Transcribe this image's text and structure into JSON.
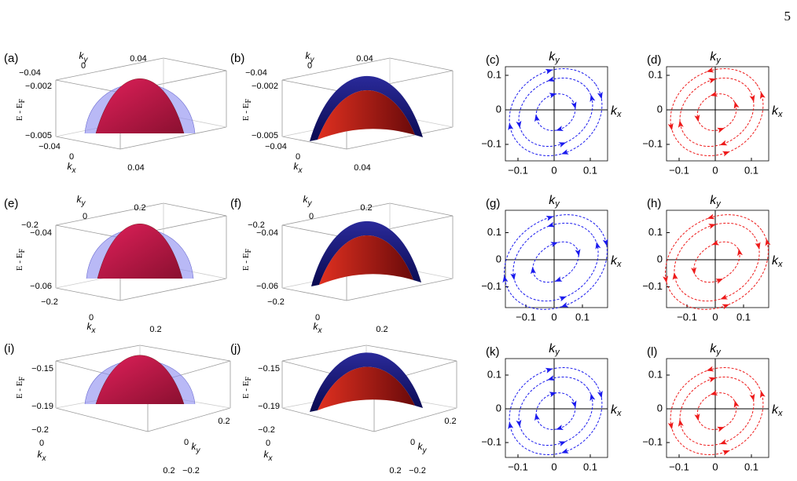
{
  "page_number": "5",
  "panels": [
    {
      "label": "(a)",
      "kind": "surface",
      "z_label": "E - E",
      "z_label_sub": "F",
      "z_ticks": [
        "−0.002",
        "−0.005"
      ],
      "x_label": "k",
      "x_label_sub": "x",
      "x_ticks": [
        "−0.04",
        "0",
        "0.04"
      ],
      "y_label": "k",
      "y_label_sub": "y",
      "y_ticks": [
        "−0.04",
        "0",
        "0.04"
      ]
    },
    {
      "label": "(b)",
      "kind": "surface",
      "z_label": "E - E",
      "z_label_sub": "F",
      "z_ticks": [
        "−0.002",
        "−0.005"
      ],
      "x_label": "k",
      "x_label_sub": "x",
      "x_ticks": [
        "−0.04",
        "0",
        "0.04"
      ],
      "y_label": "k",
      "y_label_sub": "y",
      "y_ticks": [
        "−0.04",
        "0",
        "0.04"
      ]
    },
    {
      "label": "(c)",
      "kind": "contour",
      "color": "#1a1aee",
      "x_label": "k",
      "x_label_sub": "x",
      "x_ticks": [
        "−0.1",
        "0",
        "0.1"
      ],
      "y_label": "k",
      "y_label_sub": "y",
      "y_ticks": [
        "0.1",
        "0",
        "−0.1"
      ]
    },
    {
      "label": "(d)",
      "kind": "contour",
      "color": "#ee1a1a",
      "x_label": "k",
      "x_label_sub": "x",
      "x_ticks": [
        "−0.1",
        "0",
        "0.1"
      ],
      "y_label": "k",
      "y_label_sub": "y",
      "y_ticks": [
        "0.1",
        "0",
        "−0.1"
      ]
    },
    {
      "label": "(e)",
      "kind": "surface",
      "z_label": "E - E",
      "z_label_sub": "F",
      "z_ticks": [
        "−0.04",
        "−0.06"
      ],
      "x_label": "k",
      "x_label_sub": "x",
      "x_ticks": [
        "−0.2",
        "0",
        "0.2"
      ],
      "y_label": "k",
      "y_label_sub": "y",
      "y_ticks": [
        "−0.2",
        "0",
        "0.2"
      ]
    },
    {
      "label": "(f)",
      "kind": "surface",
      "z_label": "E - E",
      "z_label_sub": "F",
      "z_ticks": [
        "−0.04",
        "−0.06"
      ],
      "x_label": "k",
      "x_label_sub": "x",
      "x_ticks": [
        "−0.2",
        "0",
        "0.2"
      ],
      "y_label": "k",
      "y_label_sub": "y",
      "y_ticks": [
        "−0.2",
        "0",
        "0.2"
      ]
    },
    {
      "label": "(g)",
      "kind": "contour",
      "color": "#1a1aee",
      "x_label": "k",
      "x_label_sub": "x",
      "x_ticks": [
        "−0.1",
        "0",
        "0.1"
      ],
      "y_label": "k",
      "y_label_sub": "y",
      "y_ticks": [
        "0.1",
        "0",
        "−0.1"
      ]
    },
    {
      "label": "(h)",
      "kind": "contour",
      "color": "#ee1a1a",
      "x_label": "k",
      "x_label_sub": "x",
      "x_ticks": [
        "−0.1",
        "0",
        "0.1"
      ],
      "y_label": "k",
      "y_label_sub": "y",
      "y_ticks": [
        "0.1",
        "0",
        "−0.1"
      ]
    },
    {
      "label": "(i)",
      "kind": "surface",
      "z_label": "E - E",
      "z_label_sub": "F",
      "z_ticks": [
        "−0.15",
        "−0.19"
      ],
      "x_label": "k",
      "x_label_sub": "x",
      "x_ticks": [
        "−0.2",
        "0",
        "0.2"
      ],
      "y_label": "k",
      "y_label_sub": "y",
      "y_ticks": [
        "0.2",
        "0",
        "−0.2"
      ]
    },
    {
      "label": "(j)",
      "kind": "surface",
      "z_label": "E - E",
      "z_label_sub": "F",
      "z_ticks": [
        "−0.15",
        "−0.19"
      ],
      "x_label": "k",
      "x_label_sub": "x",
      "x_ticks": [
        "−0.2",
        "0",
        "0.2"
      ],
      "y_label": "k",
      "y_label_sub": "y",
      "y_ticks": [
        "0.2",
        "0",
        "−0.2"
      ]
    },
    {
      "label": "(k)",
      "kind": "contour",
      "color": "#1a1aee",
      "x_label": "k",
      "x_label_sub": "x",
      "x_ticks": [
        "−0.1",
        "0",
        "0.1"
      ],
      "y_label": "k",
      "y_label_sub": "y",
      "y_ticks": [
        "0.1",
        "0",
        "−0.1"
      ]
    },
    {
      "label": "(l)",
      "kind": "contour",
      "color": "#ee1a1a",
      "x_label": "k",
      "x_label_sub": "x",
      "x_ticks": [
        "−0.1",
        "0",
        "0.1"
      ],
      "y_label": "k",
      "y_label_sub": "y",
      "y_ticks": [
        "0.1",
        "0",
        "−0.1"
      ]
    }
  ]
}
